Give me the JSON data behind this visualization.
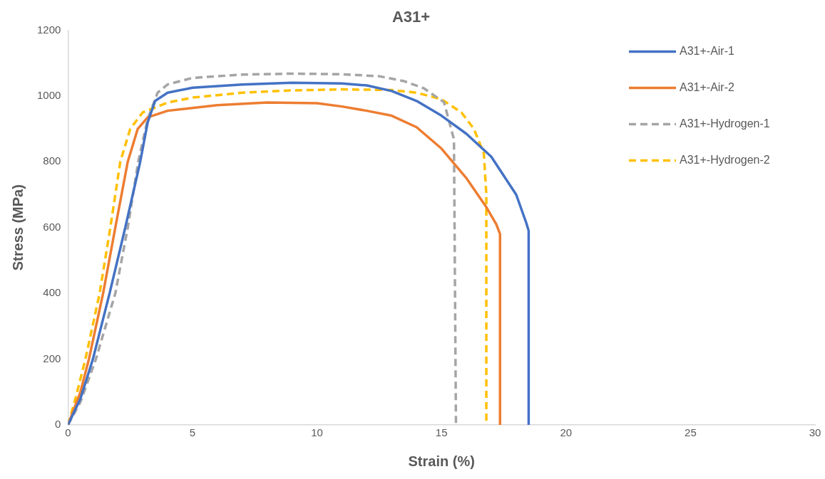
{
  "chart_data": {
    "type": "line",
    "title": "A31+",
    "xlabel": "Strain (%)",
    "ylabel": "Stress (MPa)",
    "xlim": [
      0,
      30
    ],
    "xticks": [
      0,
      5,
      10,
      15,
      20,
      25,
      30
    ],
    "ylim": [
      0,
      1200
    ],
    "yticks": [
      0,
      200,
      400,
      600,
      800,
      1000,
      1200
    ],
    "legend": "top right",
    "marker": "none",
    "series": [
      {
        "name": "A31+-Air-1",
        "color": "#4472c4",
        "line_style": "solid",
        "x": [
          0,
          0.5,
          1,
          1.67,
          2.3,
          2.9,
          3.2,
          3.5,
          4,
          5,
          7,
          9,
          11,
          12,
          13,
          14,
          15,
          16,
          17,
          18,
          18.4,
          18.5,
          18.5
        ],
        "values": [
          0,
          80,
          200,
          400,
          600,
          800,
          920,
          985,
          1010,
          1025,
          1035,
          1040,
          1038,
          1032,
          1015,
          985,
          940,
          885,
          815,
          700,
          615,
          590,
          0
        ]
      },
      {
        "name": "A31+-Air-2",
        "color": "#ed7d31",
        "line_style": "solid",
        "x": [
          0,
          0.5,
          0.84,
          1.41,
          1.9,
          2.4,
          2.8,
          3.2,
          4,
          6,
          8,
          10,
          11,
          12,
          13,
          14,
          15,
          16,
          16.8,
          17.2,
          17.35,
          17.35
        ],
        "values": [
          0,
          100,
          200,
          400,
          600,
          800,
          900,
          935,
          955,
          972,
          980,
          978,
          968,
          955,
          940,
          905,
          840,
          750,
          662,
          610,
          580,
          0
        ]
      },
      {
        "name": "A31+-Hydrogen-1",
        "color": "#a5a5a5",
        "line_style": "dashed",
        "x": [
          0,
          0.5,
          1.12,
          1.9,
          2.4,
          2.82,
          3.2,
          3.6,
          4,
          5,
          7,
          9,
          11,
          12.5,
          13.5,
          14.3,
          15.1,
          15.5,
          15.58
        ],
        "values": [
          0,
          70,
          200,
          400,
          600,
          800,
          930,
          1010,
          1035,
          1055,
          1065,
          1068,
          1066,
          1060,
          1045,
          1023,
          981,
          868,
          0
        ]
      },
      {
        "name": "A31+-Hydrogen-2",
        "color": "#ffc000",
        "line_style": "dashed",
        "x": [
          0,
          0.3,
          0.7,
          1.27,
          1.7,
          2.1,
          2.5,
          3,
          4,
          5,
          7,
          9,
          11,
          13,
          14,
          15,
          15.8,
          16.3,
          16.7,
          16.8,
          16.8
        ],
        "values": [
          0,
          80,
          200,
          400,
          600,
          800,
          900,
          950,
          980,
          995,
          1010,
          1017,
          1020,
          1018,
          1010,
          990,
          950,
          900,
          825,
          700,
          0
        ]
      }
    ]
  }
}
